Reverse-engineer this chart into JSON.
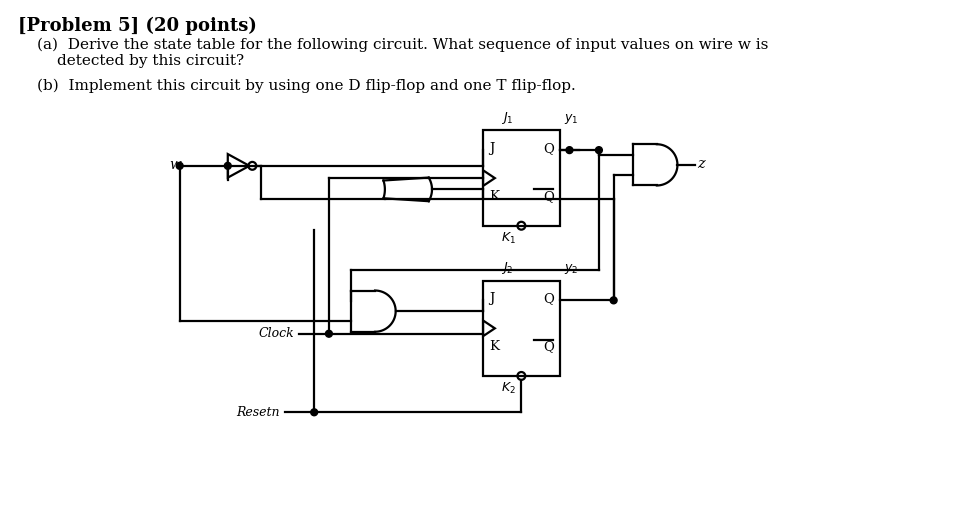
{
  "title": "[Problem 5] (20 points)",
  "part_a": "(a)  Derive the state table for the following circuit. What sequence of input values on wire w is\n        detected by this circuit?",
  "part_b": "(b)  Implement this circuit by using one D flip-flop and one T flip-flop.",
  "bg_color": "#ffffff",
  "text_color": "#000000",
  "line_color": "#000000",
  "font_size_title": 13,
  "font_size_body": 11.5
}
